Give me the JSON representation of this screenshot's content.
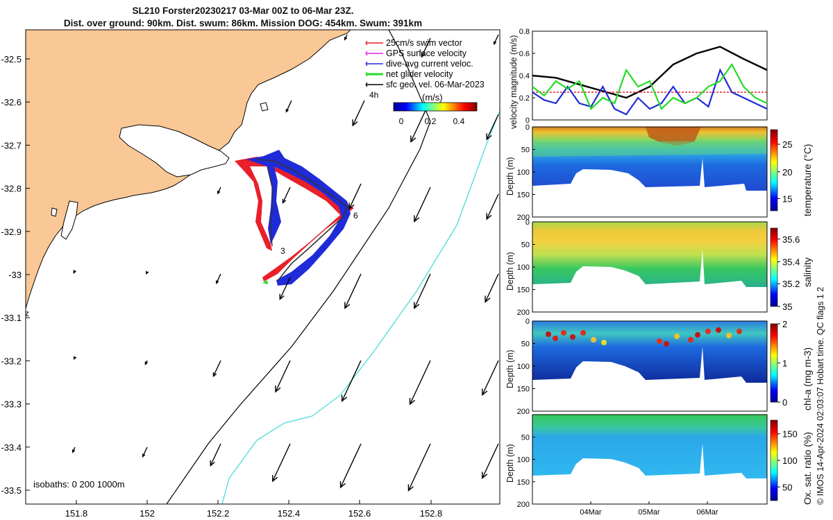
{
  "title": {
    "line1": "SL210 Forster20230217 03-Mar 00Z to 06-Mar 23Z.",
    "line2": "Dist. over ground: 90km. Dist. swum: 86km. Mission DOG: 454km. Swum: 391km"
  },
  "footer_side": "© IMOS 14-Apr-2024 02:03:07 Hobart time. QC flags 1  2",
  "map": {
    "x_ticks": [
      "151.8",
      "152",
      "152.2",
      "152.4",
      "152.6",
      "152.8"
    ],
    "y_ticks": [
      "-32.5",
      "-32.6",
      "-32.7",
      "-32.8",
      "-32.9",
      "-33",
      "-33.1",
      "-33.2",
      "-33.3",
      "-33.4",
      "-33.5"
    ],
    "legend": [
      {
        "label": "25cm/s swim vector",
        "color": "#e8202a"
      },
      {
        "label": "GPS surface velocity",
        "color": "#e41ee4"
      },
      {
        "label": "dive-avg current veloc.",
        "color": "#1f2bd8"
      },
      {
        "label": "net glider velocity",
        "color": "#22dd22"
      },
      {
        "label": "sfc geo. vel. 06-Mar-2023",
        "color": "#000000"
      }
    ],
    "colorbar": {
      "title": "(m/s)",
      "ticks": [
        "0",
        "0.2",
        "0.4"
      ]
    },
    "isobaths_label": "isobaths: 0   200  1000m",
    "annotations": {
      "interval": "4h",
      "point_3": "3",
      "point_6": "6",
      "z": "z"
    },
    "colors": {
      "land": "#f9c896",
      "isobath_1000": "#3fd8d8",
      "isobath_200": "#000000"
    }
  },
  "panels": {
    "date_ticks": [
      "04Mar",
      "05Mar",
      "06Mar"
    ],
    "velocity": {
      "ylabel": "velocity magnitude (m/s)",
      "y_ticks": [
        "0",
        "0.2",
        "0.4",
        "0.6",
        "0.8"
      ]
    },
    "temperature": {
      "ylabel": "Depth (m)",
      "cb_label": "temperature (°C)",
      "cb_ticks": [
        "15",
        "20",
        "25"
      ],
      "y_ticks": [
        "0",
        "50",
        "100",
        "150",
        "200"
      ]
    },
    "salinity": {
      "ylabel": "Depth (m)",
      "cb_label": "salinity",
      "cb_ticks": [
        "35",
        "35.2",
        "35.4",
        "35.6"
      ],
      "y_ticks": [
        "0",
        "50",
        "100",
        "150",
        "200"
      ]
    },
    "chla": {
      "ylabel": "Depth (m)",
      "cb_label": "chl-a (mg m-3)",
      "cb_ticks": [
        "0",
        "1",
        "2"
      ],
      "y_ticks": [
        "0",
        "50",
        "100",
        "150",
        "200"
      ]
    },
    "oxygen": {
      "ylabel": "Depth (m)",
      "cb_label": "Ox. sat. ratio (%)",
      "cb_ticks": [
        "50",
        "100",
        "150"
      ],
      "y_ticks": [
        "50",
        "100",
        "150",
        "200"
      ]
    }
  },
  "chart_data": [
    {
      "type": "line",
      "title": "",
      "xlabel": "",
      "ylabel": "velocity magnitude (m/s)",
      "ylim": [
        0,
        0.8
      ],
      "x_ticks": [
        "04Mar",
        "05Mar",
        "06Mar"
      ],
      "series": [
        {
          "values_note": "",
          "color": "#000000",
          "x": [
            0,
            0.1,
            0.2,
            0.3,
            0.4,
            0.5,
            0.6,
            0.7,
            0.8,
            0.9,
            1
          ],
          "values": [
            0.4,
            0.38,
            0.32,
            0.26,
            0.2,
            0.3,
            0.5,
            0.6,
            0.66,
            0.55,
            0.45
          ]
        },
        {
          "color": "#e8202a",
          "x": [
            0,
            1
          ],
          "values": [
            0.25,
            0.25
          ]
        },
        {
          "color": "#1f2bd8",
          "x": [
            0,
            0.05,
            0.1,
            0.15,
            0.2,
            0.25,
            0.3,
            0.35,
            0.4,
            0.45,
            0.5,
            0.55,
            0.6,
            0.65,
            0.7,
            0.75,
            0.8,
            0.85,
            0.9,
            0.95,
            1
          ],
          "values": [
            0.25,
            0.18,
            0.15,
            0.3,
            0.15,
            0.12,
            0.3,
            0.1,
            0.05,
            0.2,
            0.1,
            0.15,
            0.3,
            0.15,
            0.2,
            0.12,
            0.45,
            0.25,
            0.2,
            0.15,
            0.1
          ]
        },
        {
          "color": "#22dd22",
          "x": [
            0,
            0.05,
            0.1,
            0.15,
            0.2,
            0.25,
            0.3,
            0.35,
            0.4,
            0.45,
            0.5,
            0.55,
            0.6,
            0.65,
            0.7,
            0.75,
            0.8,
            0.85,
            0.9,
            0.95,
            1
          ],
          "values": [
            0.3,
            0.22,
            0.35,
            0.28,
            0.35,
            0.1,
            0.2,
            0.15,
            0.45,
            0.3,
            0.35,
            0.1,
            0.2,
            0.15,
            0.2,
            0.3,
            0.35,
            0.5,
            0.3,
            0.2,
            0.15
          ]
        }
      ]
    },
    {
      "type": "heatmap",
      "ylabel": "Depth (m)",
      "colorbar": "temperature (°C)",
      "ylim": [
        200,
        0
      ],
      "clim": [
        13,
        28
      ]
    },
    {
      "type": "heatmap",
      "ylabel": "Depth (m)",
      "colorbar": "salinity",
      "ylim": [
        200,
        0
      ],
      "clim": [
        35,
        35.7
      ]
    },
    {
      "type": "heatmap",
      "ylabel": "Depth (m)",
      "colorbar": "chl-a (mg m-3)",
      "ylim": [
        200,
        0
      ],
      "clim": [
        0,
        2
      ]
    },
    {
      "type": "heatmap",
      "ylabel": "Depth (m)",
      "colorbar": "Ox. sat. ratio (%)",
      "ylim": [
        200,
        0
      ],
      "clim": [
        25,
        175
      ]
    }
  ]
}
